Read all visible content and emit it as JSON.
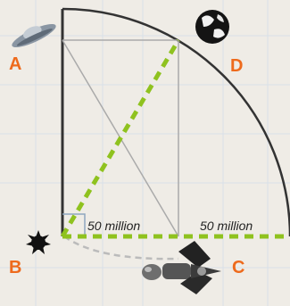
{
  "points": {
    "A": "A",
    "B": "B",
    "C": "C",
    "D": "D"
  },
  "distances": {
    "left": "50 million",
    "right": "50 million"
  },
  "icons": {
    "A": "spacecraft-icon",
    "B": "star-icon",
    "C": "spacecraft-icon",
    "D": "planet-icon"
  },
  "colors": {
    "background": "#efece6",
    "grid": "#d9e0e8",
    "line": "#333333",
    "light_line": "#aaaaaa",
    "dashed": "#8fc21f",
    "label": "#ee6a1c",
    "text": "#222222"
  }
}
